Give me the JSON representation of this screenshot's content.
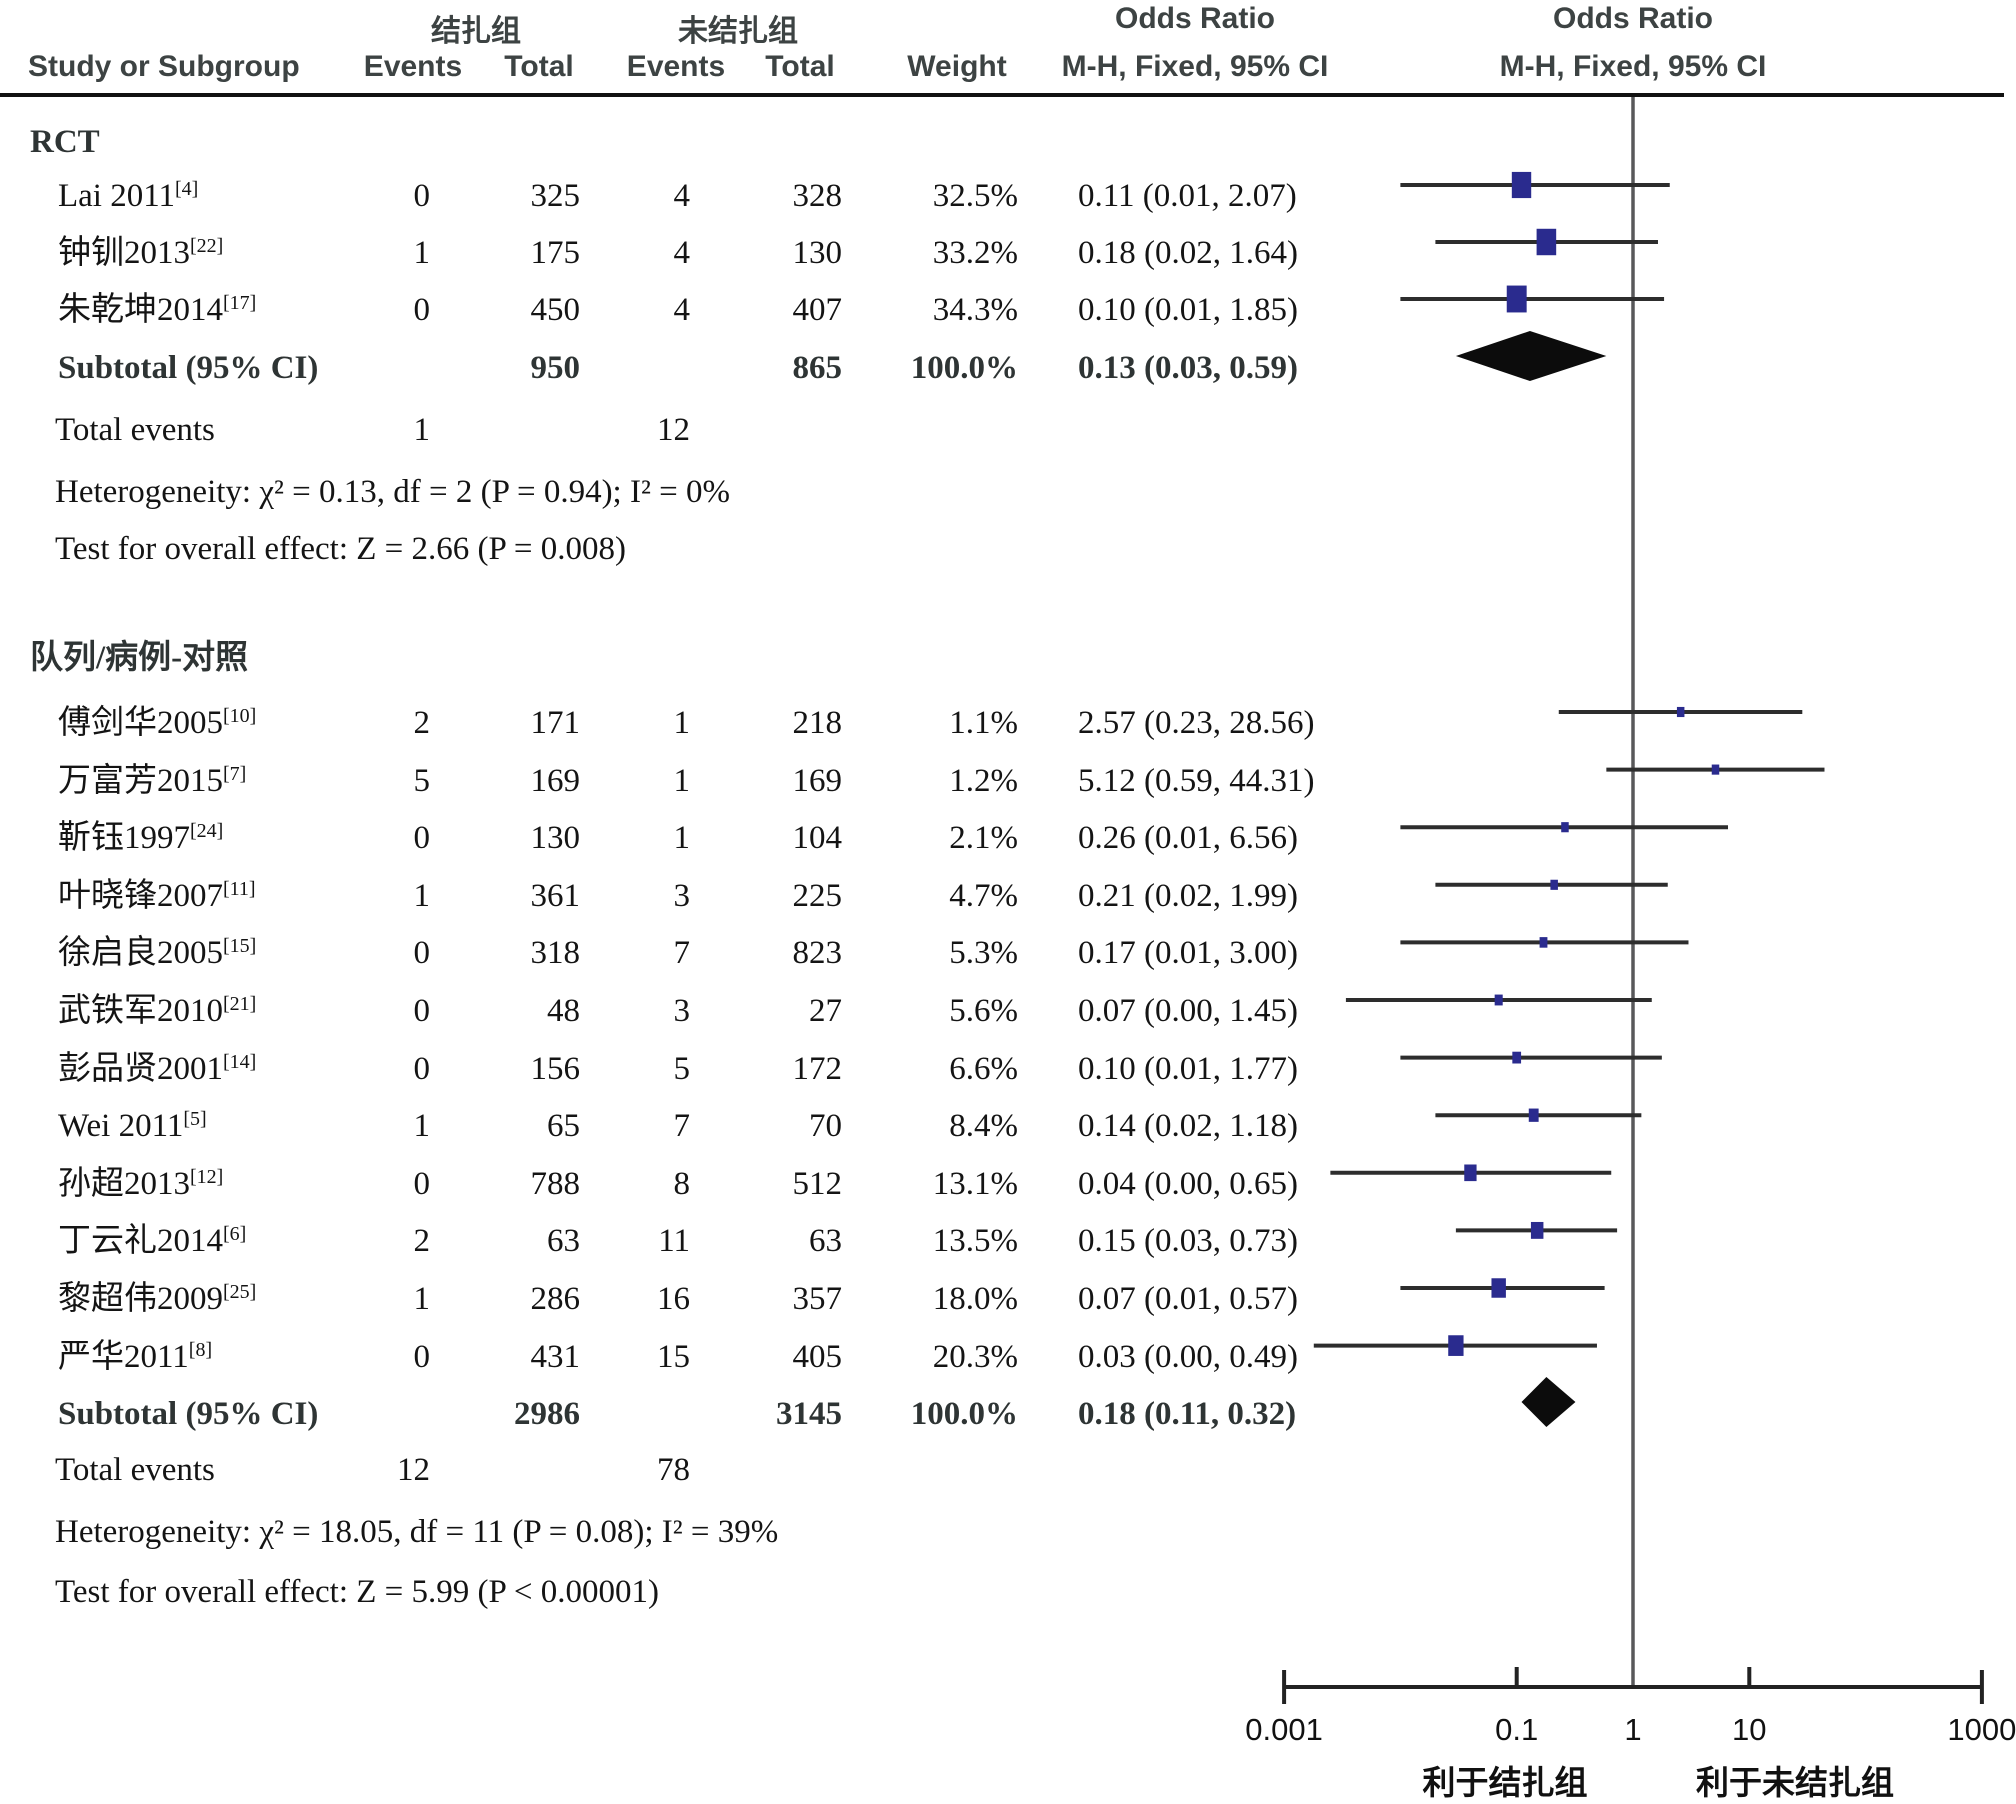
{
  "header": {
    "group1": "结扎组",
    "group2": "未结扎组",
    "study_col": "Study or Subgroup",
    "events_col": "Events",
    "total_col": "Total",
    "weight_col": "Weight",
    "or_title": "Odds Ratio",
    "or_method": "M-H, Fixed, 95% CI"
  },
  "chart_data": {
    "type": "forest",
    "effect_label": "Odds Ratio",
    "model": "M-H, Fixed, 95% CI",
    "marker_color": "#2a2b8e",
    "diamond_color": "#0c0c0c",
    "x_axis": {
      "scale": "log",
      "tick_labels": [
        "0.001",
        "0.1",
        "1",
        "10",
        "1000"
      ],
      "tick_values": [
        0.001,
        0.1,
        1,
        10,
        1000
      ],
      "favors_left": "利于结扎组",
      "favors_right": "利于未结扎组"
    },
    "total_events_label": "Total events",
    "groups": [
      {
        "name": "RCT",
        "studies": [
          {
            "label": "Lai 2011",
            "ref": "[4]",
            "events1": "0",
            "total1": "325",
            "events2": "4",
            "total2": "328",
            "weight": "32.5%",
            "weight_value": 32.5,
            "or_text": "0.11 (0.01, 2.07)",
            "or": 0.11,
            "lo": 0.01,
            "hi": 2.07
          },
          {
            "label": "钟钏2013",
            "ref": "[22]",
            "events1": "1",
            "total1": "175",
            "events2": "4",
            "total2": "130",
            "weight": "33.2%",
            "weight_value": 33.2,
            "or_text": "0.18 (0.02, 1.64)",
            "or": 0.18,
            "lo": 0.02,
            "hi": 1.64
          },
          {
            "label": "朱乾坤2014",
            "ref": "[17]",
            "events1": "0",
            "total1": "450",
            "events2": "4",
            "total2": "407",
            "weight": "34.3%",
            "weight_value": 34.3,
            "or_text": "0.10 (0.01, 1.85)",
            "or": 0.1,
            "lo": 0.01,
            "hi": 1.85
          }
        ],
        "subtotal": {
          "label": "Subtotal (95% CI)",
          "total1": "950",
          "total2": "865",
          "weight": "100.0%",
          "or_text": "0.13 (0.03, 0.59)",
          "or": 0.13,
          "lo": 0.03,
          "hi": 0.59
        },
        "total_events1": "1",
        "total_events2": "12",
        "heterogeneity": "Heterogeneity: χ² = 0.13, df = 2 (P = 0.94); I² = 0%",
        "overall": "Test for overall effect: Z = 2.66 (P = 0.008)"
      },
      {
        "name": "队列/病例-对照",
        "studies": [
          {
            "label": "傅剑华2005",
            "ref": "[10]",
            "events1": "2",
            "total1": "171",
            "events2": "1",
            "total2": "218",
            "weight": "1.1%",
            "weight_value": 1.1,
            "or_text": "2.57 (0.23, 28.56)",
            "or": 2.57,
            "lo": 0.23,
            "hi": 28.56
          },
          {
            "label": "万富芳2015",
            "ref": "[7]",
            "events1": "5",
            "total1": "169",
            "events2": "1",
            "total2": "169",
            "weight": "1.2%",
            "weight_value": 1.2,
            "or_text": "5.12 (0.59, 44.31)",
            "or": 5.12,
            "lo": 0.59,
            "hi": 44.31
          },
          {
            "label": "靳钰1997",
            "ref": "[24]",
            "events1": "0",
            "total1": "130",
            "events2": "1",
            "total2": "104",
            "weight": "2.1%",
            "weight_value": 2.1,
            "or_text": "0.26 (0.01, 6.56)",
            "or": 0.26,
            "lo": 0.01,
            "hi": 6.56
          },
          {
            "label": "叶晓锋2007",
            "ref": "[11]",
            "events1": "1",
            "total1": "361",
            "events2": "3",
            "total2": "225",
            "weight": "4.7%",
            "weight_value": 4.7,
            "or_text": "0.21 (0.02, 1.99)",
            "or": 0.21,
            "lo": 0.02,
            "hi": 1.99
          },
          {
            "label": "徐启良2005",
            "ref": "[15]",
            "events1": "0",
            "total1": "318",
            "events2": "7",
            "total2": "823",
            "weight": "5.3%",
            "weight_value": 5.3,
            "or_text": "0.17 (0.01, 3.00)",
            "or": 0.17,
            "lo": 0.01,
            "hi": 3.0
          },
          {
            "label": "武铁军2010",
            "ref": "[21]",
            "events1": "0",
            "total1": "48",
            "events2": "3",
            "total2": "27",
            "weight": "5.6%",
            "weight_value": 5.6,
            "or_text": "0.07 (0.00, 1.45)",
            "or": 0.07,
            "lo": 0.0,
            "hi": 1.45,
            "plot_lo": 0.0034
          },
          {
            "label": "彭品贤2001",
            "ref": "[14]",
            "events1": "0",
            "total1": "156",
            "events2": "5",
            "total2": "172",
            "weight": "6.6%",
            "weight_value": 6.6,
            "or_text": "0.10 (0.01, 1.77)",
            "or": 0.1,
            "lo": 0.01,
            "hi": 1.77
          },
          {
            "label": "Wei 2011",
            "ref": "[5]",
            "events1": "1",
            "total1": "65",
            "events2": "7",
            "total2": "70",
            "weight": "8.4%",
            "weight_value": 8.4,
            "or_text": "0.14 (0.02, 1.18)",
            "or": 0.14,
            "lo": 0.02,
            "hi": 1.18
          },
          {
            "label": "孙超2013",
            "ref": "[12]",
            "events1": "0",
            "total1": "788",
            "events2": "8",
            "total2": "512",
            "weight": "13.1%",
            "weight_value": 13.1,
            "or_text": "0.04 (0.00, 0.65)",
            "or": 0.04,
            "lo": 0.0,
            "hi": 0.65,
            "plot_lo": 0.0025
          },
          {
            "label": "丁云礼2014",
            "ref": "[6]",
            "events1": "2",
            "total1": "63",
            "events2": "11",
            "total2": "63",
            "weight": "13.5%",
            "weight_value": 13.5,
            "or_text": "0.15 (0.03, 0.73)",
            "or": 0.15,
            "lo": 0.03,
            "hi": 0.73
          },
          {
            "label": "黎超伟2009",
            "ref": "[25]",
            "events1": "1",
            "total1": "286",
            "events2": "16",
            "total2": "357",
            "weight": "18.0%",
            "weight_value": 18.0,
            "or_text": "0.07 (0.01, 0.57)",
            "or": 0.07,
            "lo": 0.01,
            "hi": 0.57
          },
          {
            "label": "严华2011",
            "ref": "[8]",
            "events1": "0",
            "total1": "431",
            "events2": "15",
            "total2": "405",
            "weight": "20.3%",
            "weight_value": 20.3,
            "or_text": "0.03 (0.00, 0.49)",
            "or": 0.03,
            "lo": 0.0,
            "hi": 0.49,
            "plot_lo": 0.0018
          }
        ],
        "subtotal": {
          "label": "Subtotal (95% CI)",
          "total1": "2986",
          "total2": "3145",
          "weight": "100.0%",
          "or_text": "0.18 (0.11, 0.32)",
          "or": 0.18,
          "lo": 0.11,
          "hi": 0.32
        },
        "total_events1": "12",
        "total_events2": "78",
        "heterogeneity": "Heterogeneity: χ² = 18.05, df = 11 (P = 0.08); I² = 39%",
        "overall": "Test for overall effect: Z = 5.99 (P < 0.00001)"
      }
    ]
  }
}
